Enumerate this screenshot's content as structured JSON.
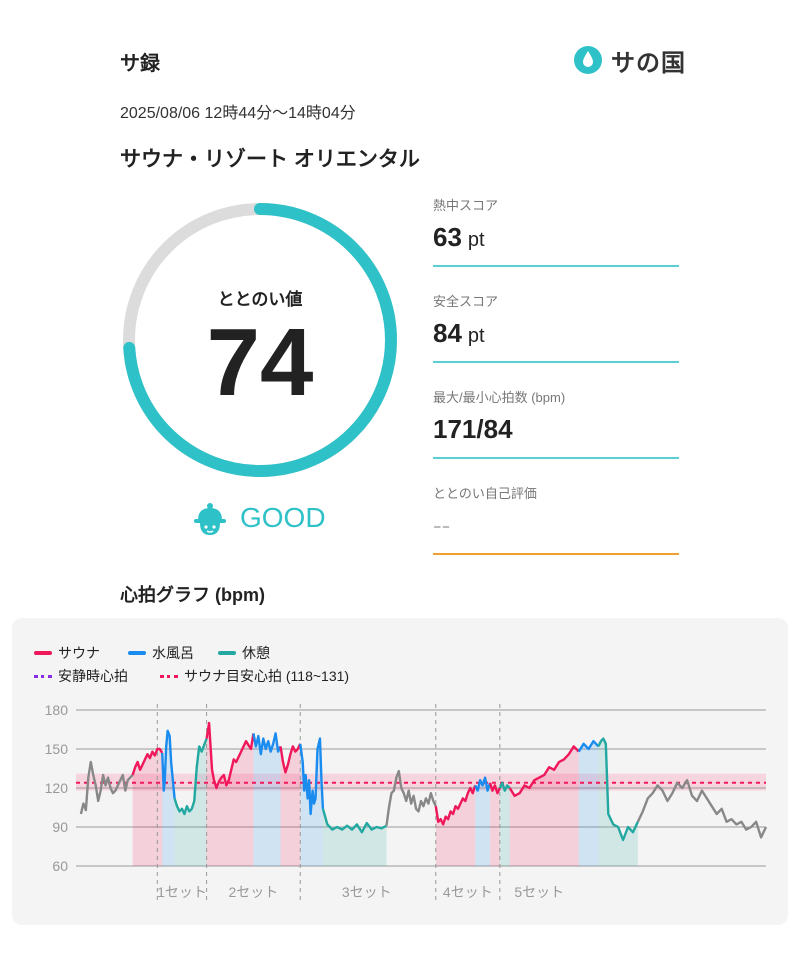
{
  "header": {
    "title": "サ録",
    "logo_text": "サの国",
    "logo_icon": "water-drop-icon"
  },
  "session": {
    "datetime": "2025/08/06 12時44分〜14時04分",
    "facility": "サウナ・リゾート オリエンタル"
  },
  "totonoi": {
    "label": "ととのい値",
    "value": "74",
    "grade": "GOOD",
    "grade_icon": "hat-face-icon",
    "fraction": 0.74
  },
  "metrics": [
    {
      "label": "熱中スコア",
      "value": "63",
      "unit": "pt"
    },
    {
      "label": "安全スコア",
      "value": "84",
      "unit": "pt"
    },
    {
      "label": "最大/最小心拍数 (bpm)",
      "value": "171/84",
      "unit": ""
    },
    {
      "label": "ととのい自己評価",
      "value": "--",
      "unit": ""
    }
  ],
  "colors": {
    "accent": "#2ec1c8",
    "sauna": "#f0185a",
    "water": "#1a8cf0",
    "rest": "#22a8a0",
    "resting_hr": "#8a2be2",
    "target": "#f0185a",
    "other": "#888888",
    "self_eval_line": "#f0a033"
  },
  "graph": {
    "title": "心拍グラフ (bpm)",
    "legend": {
      "sauna": "サウナ",
      "water": "水風呂",
      "rest": "休憩",
      "resting_hr": "安静時心拍",
      "target": "サウナ目安心拍 (118~131)"
    }
  },
  "chart_data": {
    "type": "line",
    "ylabel": "bpm",
    "yticks": [
      180,
      150,
      120,
      90,
      60
    ],
    "ylim": [
      60,
      180
    ],
    "target_band": [
      118,
      131
    ],
    "target_line": 124,
    "xlim": [
      0,
      80
    ],
    "sets": [
      {
        "label": "1セット",
        "start": 11.5,
        "end": 20
      },
      {
        "label": "2セット",
        "start": 20,
        "end": 30.5
      },
      {
        "label": "3セット",
        "start": 30.5,
        "end": 49.5
      },
      {
        "label": "4セット",
        "start": 49.5,
        "end": 57.5
      },
      {
        "label": "5セット",
        "start": 57.5,
        "end": 80
      }
    ],
    "series": [
      {
        "name": "other",
        "x": [
          1,
          1.5,
          2,
          2.5,
          3,
          3.5,
          4,
          4.5,
          5,
          5.5,
          6,
          6.5,
          7,
          7.5,
          8,
          8.5,
          9,
          9.5,
          10,
          10.5,
          11,
          11.5
        ],
        "y": [
          100,
          108,
          103,
          128,
          140,
          130,
          122,
          110,
          118,
          130,
          122,
          128,
          120,
          116,
          118,
          122,
          126,
          130,
          118,
          126,
          128,
          130
        ]
      },
      {
        "name": "sauna",
        "x": [
          11.5,
          12,
          12.5,
          13,
          13.5,
          14,
          14.5,
          15,
          15.5,
          16,
          16.5,
          17,
          17.5
        ],
        "y": [
          130,
          136,
          140,
          134,
          138,
          142,
          146,
          143,
          148,
          145,
          150,
          150,
          147
        ]
      },
      {
        "name": "water",
        "x": [
          17.5,
          17.8,
          18,
          18.3,
          18.6,
          19,
          19.3,
          19.6,
          20
        ],
        "y": [
          147,
          118,
          125,
          152,
          164,
          160,
          140,
          128,
          112
        ]
      },
      {
        "name": "rest",
        "x": [
          20,
          20.5,
          21,
          21.5,
          22,
          22.5,
          23,
          23.5,
          24,
          24.5,
          25,
          25.5,
          26,
          26.5
        ],
        "y": [
          112,
          106,
          102,
          104,
          100,
          106,
          102,
          104,
          110,
          136,
          152,
          148,
          153,
          158
        ]
      },
      {
        "name": "sauna",
        "x": [
          26.5,
          27,
          27.3,
          27.6,
          28,
          28.5,
          29,
          29.5,
          30,
          30.5,
          31,
          31.5,
          32,
          32.5,
          33,
          33.5,
          34,
          34.5,
          35,
          35.5,
          36
        ],
        "y": [
          158,
          170,
          152,
          134,
          126,
          120,
          125,
          128,
          130,
          122,
          126,
          134,
          142,
          140,
          144,
          148,
          152,
          156,
          153,
          150,
          162
        ]
      },
      {
        "name": "water",
        "x": [
          36,
          36.5,
          37,
          37.5,
          38,
          38.5,
          39,
          39.5,
          40,
          40.5,
          41,
          41.5
        ],
        "y": [
          162,
          152,
          160,
          146,
          158,
          150,
          156,
          148,
          154,
          162,
          148,
          152
        ]
      },
      {
        "name": "sauna",
        "x": [
          41.5,
          42,
          42.5,
          43,
          43.5,
          44,
          44.5,
          45,
          45.5
        ],
        "y": [
          152,
          140,
          132,
          138,
          146,
          152,
          148,
          150,
          154
        ]
      },
      {
        "name": "water",
        "x": [
          45.5,
          46,
          46.3,
          46.6,
          47,
          47.3,
          47.6,
          48,
          48.3,
          48.6,
          49,
          49.5,
          49.8,
          50.1
        ],
        "y": [
          154,
          140,
          118,
          130,
          112,
          126,
          100,
          118,
          108,
          112,
          150,
          158,
          126,
          104
        ]
      },
      {
        "name": "rest",
        "x": [
          50.1,
          51,
          52,
          53,
          54,
          55,
          56,
          57,
          58,
          59,
          60,
          61,
          62,
          63
        ],
        "y": [
          104,
          92,
          88,
          90,
          88,
          91,
          88,
          92,
          86,
          93,
          88,
          90,
          89,
          91
        ]
      },
      {
        "name": "other",
        "x": [
          63,
          63.5,
          64,
          64.5,
          65,
          65.5,
          66,
          66.5,
          67,
          67.5,
          68,
          68.5,
          69,
          69.5,
          70,
          70.5,
          71,
          71.5,
          72,
          72.5,
          73
        ],
        "y": [
          91,
          105,
          116,
          118,
          128,
          133,
          120,
          116,
          110,
          118,
          108,
          114,
          104,
          102,
          110,
          106,
          112,
          108,
          116,
          110,
          106
        ]
      },
      {
        "name": "sauna",
        "x": [
          73,
          73.5,
          74,
          74.5,
          75,
          75.5,
          76,
          76.5,
          77,
          77.5,
          78,
          78.5,
          79,
          79.5,
          80,
          80.5,
          81
        ],
        "y": [
          106,
          94,
          96,
          92,
          98,
          96,
          102,
          100,
          106,
          104,
          108,
          112,
          110,
          116,
          120,
          116,
          122
        ]
      },
      {
        "name": "water",
        "x": [
          81,
          81.5,
          82,
          82.5,
          83,
          83.5,
          84
        ],
        "y": [
          122,
          118,
          126,
          122,
          128,
          118,
          124
        ]
      },
      {
        "name": "sauna",
        "x": [
          84,
          84.5,
          85,
          85.5,
          86
        ],
        "y": [
          124,
          118,
          122,
          116,
          120
        ]
      },
      {
        "name": "rest",
        "x": [
          86,
          86.5,
          87,
          87.5,
          88
        ],
        "y": [
          120,
          124,
          118,
          122,
          120
        ]
      },
      {
        "name": "sauna",
        "x": [
          88,
          89,
          90,
          91,
          92,
          93,
          94,
          95,
          96,
          97,
          98,
          99,
          100,
          101,
          102
        ],
        "y": [
          120,
          114,
          116,
          122,
          120,
          126,
          128,
          130,
          136,
          134,
          140,
          142,
          146,
          152,
          148
        ]
      },
      {
        "name": "water",
        "x": [
          102,
          103,
          104,
          105,
          106
        ],
        "y": [
          148,
          154,
          150,
          156,
          152
        ]
      },
      {
        "name": "rest",
        "x": [
          106,
          106.5,
          107,
          107.5,
          108,
          108.5,
          109,
          110,
          111,
          112,
          113,
          114
        ],
        "y": [
          152,
          156,
          158,
          154,
          100,
          96,
          92,
          90,
          80,
          90,
          86,
          94
        ]
      },
      {
        "name": "other",
        "x": [
          114,
          115,
          116,
          117,
          118,
          119,
          120,
          121,
          122,
          123,
          124,
          125,
          126,
          127,
          128,
          129,
          130,
          131,
          132,
          133,
          134,
          135,
          136,
          137,
          138,
          139,
          140
        ],
        "y": [
          94,
          102,
          112,
          116,
          122,
          118,
          110,
          116,
          124,
          120,
          126,
          114,
          110,
          118,
          112,
          106,
          100,
          104,
          94,
          96,
          92,
          94,
          88,
          90,
          94,
          82,
          90
        ]
      }
    ]
  }
}
